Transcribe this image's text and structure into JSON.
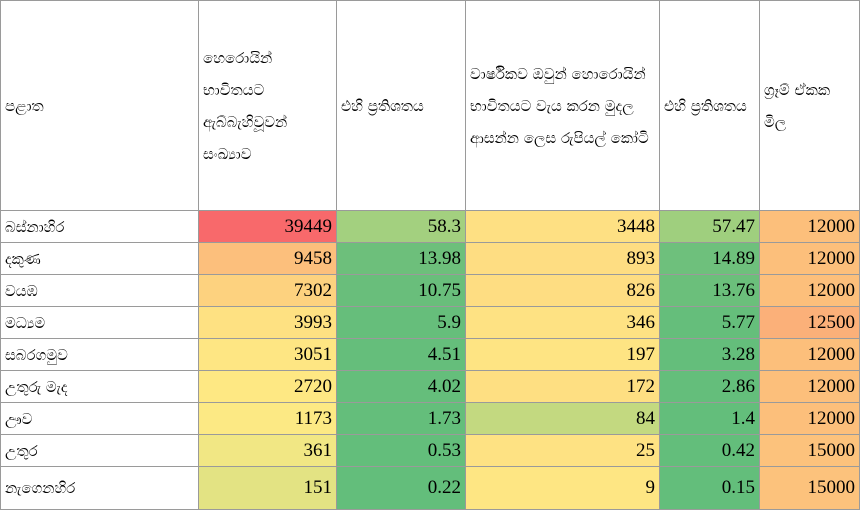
{
  "table": {
    "header": [
      "පළාත",
      "හෙරොයින් භාවිතයට ඇබ්බැහිවූවන් සංඛ්‍යාව",
      "එහි ප්‍රතිශතය",
      "වාර්ෂිකව ඔවුන් හොරොයින් භාවිතයට වැය කරන මුදල ආසන්න ලෙස රුපියල් කෝටි",
      "එහි ප්‍රතිශතය",
      "ග්‍රෑම් ඒකක මිල"
    ],
    "rows": [
      [
        "බස්නාහිර",
        39449,
        58.3,
        3448,
        57.47,
        12000
      ],
      [
        "දකුණ",
        9458,
        13.98,
        893,
        14.89,
        12000
      ],
      [
        "වයඹ",
        7302,
        10.75,
        826,
        13.76,
        12000
      ],
      [
        "මධ්‍යම",
        3993,
        5.9,
        346,
        5.77,
        12500
      ],
      [
        "සබරගමුව",
        3051,
        4.51,
        197,
        3.28,
        12000
      ],
      [
        "උතුරු මැද",
        2720,
        4.02,
        172,
        2.86,
        12000
      ],
      [
        "ඌව",
        1173,
        1.73,
        84,
        1.4,
        12000
      ],
      [
        "උතුර",
        361,
        0.53,
        25,
        0.42,
        15000
      ],
      [
        "නැගෙනහිර",
        151,
        0.22,
        9,
        0.15,
        15000
      ]
    ],
    "cell_colors": [
      [
        "#ffffff",
        "#f8696b",
        "#a3d07f",
        "#fee083",
        "#9fcf7e",
        "#fcbf7b"
      ],
      [
        "#ffffff",
        "#fcbf7c",
        "#6dbf7b",
        "#fedd82",
        "#6ec07c",
        "#fcbf7b"
      ],
      [
        "#ffffff",
        "#fdd27f",
        "#69be7b",
        "#fedd82",
        "#6bbf7b",
        "#fcbf7b"
      ],
      [
        "#ffffff",
        "#fee182",
        "#66be7b",
        "#fee283",
        "#65be7b",
        "#fbb079"
      ],
      [
        "#ffffff",
        "#fee683",
        "#65be7b",
        "#fee483",
        "#64be7b",
        "#fcbf7b"
      ],
      [
        "#ffffff",
        "#fee883",
        "#65be7b",
        "#fedf82",
        "#64be7b",
        "#fcbf7b"
      ],
      [
        "#ffffff",
        "#fce984",
        "#64be7b",
        "#c3d980",
        "#63be7b",
        "#fcbf7b"
      ],
      [
        "#ffffff",
        "#f1e784",
        "#63be7b",
        "#fee283",
        "#63be7b",
        "#fcc27c"
      ],
      [
        "#ffffff",
        "#e3e383",
        "#63be7b",
        "#fee683",
        "#63be7b",
        "#fcc27c"
      ]
    ]
  }
}
